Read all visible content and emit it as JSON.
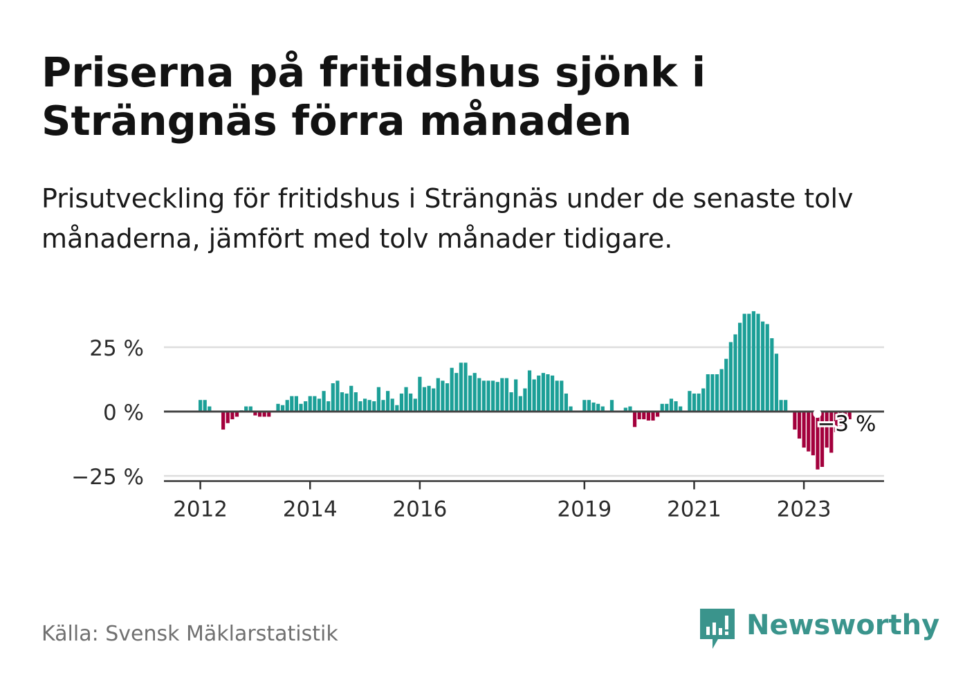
{
  "title": "Priserna på fritidshus sjönk i Strängnäs förra månaden",
  "subtitle": "Prisutveckling för fritidshus i Strängnäs under de senaste tolv månaderna, jämfört med tolv månader tidigare.",
  "source": "Källa: Svensk Mäklarstatistik",
  "brand": {
    "name": "Newsworthy",
    "icon": "newsworthy-logo-icon"
  },
  "colors": {
    "positive": "#1c9f97",
    "negative": "#a3003c",
    "axis": "#333333",
    "grid": "#dddddd",
    "brand": "#3a948c"
  },
  "chart_data": {
    "type": "bar",
    "ylabel": "",
    "xlabel": "",
    "ylim": [
      -26,
      39
    ],
    "yticks": [
      25,
      0,
      -25
    ],
    "ytick_labels": [
      "25 %",
      "0 %",
      "−25 %"
    ],
    "xticks": [
      {
        "label": "2012",
        "index": 0
      },
      {
        "label": "2014",
        "index": 24
      },
      {
        "label": "2016",
        "index": 48
      },
      {
        "label": "2019",
        "index": 84
      },
      {
        "label": "2021",
        "index": 108
      },
      {
        "label": "2023",
        "index": 132
      }
    ],
    "start_index": 0,
    "values": [
      4.5,
      4.5,
      2,
      null,
      0,
      -7,
      -4.5,
      -3,
      -2,
      0.5,
      2,
      2,
      -1.5,
      -2,
      -2,
      -2,
      null,
      3,
      2.5,
      4.5,
      6,
      6,
      3,
      4,
      6,
      6,
      5,
      8,
      4,
      11,
      12,
      7.5,
      7,
      10,
      7.5,
      4,
      5,
      4.5,
      4,
      9.5,
      4.5,
      8,
      5,
      2.5,
      7,
      9.5,
      7,
      5,
      13.5,
      9.5,
      10,
      9,
      13,
      12,
      11,
      17,
      15,
      19,
      19,
      14,
      15,
      13,
      12,
      12,
      12,
      11.5,
      13,
      13,
      7.5,
      12.5,
      6,
      9,
      16,
      12.5,
      14,
      15,
      14.5,
      14,
      12,
      12,
      7,
      2,
      null,
      null,
      4.5,
      4.5,
      3.5,
      3,
      2,
      null,
      4.5,
      null,
      null,
      1.5,
      2,
      -6,
      -3,
      -3,
      -3.5,
      -3.5,
      -2,
      3,
      3,
      5,
      4,
      2,
      null,
      8,
      7,
      7,
      9,
      14.5,
      14.5,
      14.5,
      16.5,
      20.5,
      27,
      30,
      34.5,
      38,
      38,
      39,
      38,
      35,
      34,
      28.5,
      22.5,
      4.5,
      4.5,
      null,
      -7,
      -10.5,
      -14,
      -15.5,
      -17,
      -22.5,
      -21.5,
      -14,
      -16,
      -8,
      -5.5,
      -5,
      -3
    ],
    "callout": {
      "label": "−3 %",
      "index": 144,
      "value": -3
    }
  }
}
